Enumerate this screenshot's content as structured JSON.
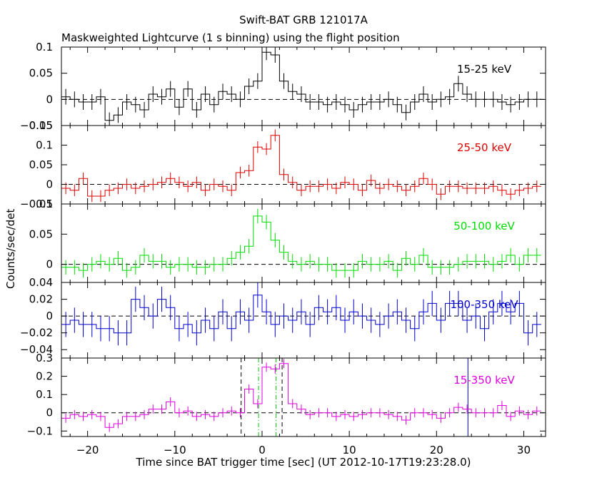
{
  "chart_data": {
    "type": "line",
    "title": "Swift-BAT GRB 121017A",
    "subtitle": "Maskweighted Lightcurve (1 s binning) using the flight position",
    "xlabel": "Time since BAT trigger time [sec] (UT 2012-10-17T19:23:28.0)",
    "ylabel": "Counts/sec/det",
    "xlim": [
      -23,
      32.5
    ],
    "xticks": [
      -20,
      -10,
      0,
      10,
      20,
      30
    ],
    "x": [
      -22.5,
      -21.5,
      -20.5,
      -19.5,
      -18.5,
      -17.5,
      -16.5,
      -15.5,
      -14.5,
      -13.5,
      -12.5,
      -11.5,
      -10.5,
      -9.5,
      -8.5,
      -7.5,
      -6.5,
      -5.5,
      -4.5,
      -3.5,
      -2.5,
      -1.5,
      -0.5,
      0.5,
      1.5,
      2.5,
      3.5,
      4.5,
      5.5,
      6.5,
      7.5,
      8.5,
      9.5,
      10.5,
      11.5,
      12.5,
      13.5,
      14.5,
      15.5,
      16.5,
      17.5,
      18.5,
      19.5,
      20.5,
      21.5,
      22.5,
      23.5,
      24.5,
      25.5,
      26.5,
      27.5,
      28.5,
      29.5,
      30.5,
      31.5
    ],
    "panels": [
      {
        "name": "15-25 keV",
        "color": "#000000",
        "ylim": [
          -0.05,
          0.1
        ],
        "yticks": [
          -0.05,
          0,
          0.05,
          0.1
        ],
        "yticklabels": [
          "−0.05",
          "0",
          "0.05",
          "0.1"
        ],
        "values": [
          0.005,
          0.0,
          -0.005,
          -0.005,
          0.005,
          -0.04,
          -0.03,
          -0.005,
          -0.01,
          -0.02,
          0.01,
          0.005,
          0.02,
          -0.015,
          0.02,
          -0.02,
          0.01,
          -0.01,
          0.015,
          0.01,
          0.0,
          0.025,
          0.035,
          0.09,
          0.085,
          0.035,
          0.015,
          0.01,
          -0.005,
          -0.005,
          -0.01,
          -0.005,
          -0.01,
          -0.02,
          -0.01,
          -0.005,
          -0.005,
          0.0,
          -0.01,
          -0.025,
          -0.005,
          0.01,
          -0.005,
          0.0,
          0.005,
          0.03,
          0.01,
          0.0,
          0.0,
          0.0,
          -0.005,
          -0.01,
          -0.005,
          0.0,
          0.0
        ],
        "error": 0.015
      },
      {
        "name": "25-50 keV",
        "color": "#dd0000",
        "ylim": [
          -0.05,
          0.15
        ],
        "yticks": [
          -0.05,
          0,
          0.05,
          0.1,
          0.15
        ],
        "yticklabels": [
          "−0.05",
          "0",
          "0.05",
          "0.1",
          "0.15"
        ],
        "values": [
          -0.01,
          -0.015,
          0.015,
          -0.03,
          -0.03,
          -0.015,
          -0.01,
          0.0,
          -0.01,
          -0.005,
          0.0,
          0.005,
          0.015,
          0.005,
          -0.005,
          0.005,
          -0.015,
          0.0,
          -0.005,
          -0.015,
          0.03,
          0.035,
          0.095,
          0.09,
          0.125,
          0.025,
          0.005,
          -0.015,
          -0.005,
          -0.005,
          0.0,
          -0.01,
          0.005,
          0.0,
          -0.015,
          0.01,
          -0.01,
          0.0,
          -0.005,
          -0.015,
          -0.005,
          0.015,
          0.0,
          -0.025,
          -0.005,
          -0.005,
          -0.01,
          -0.01,
          -0.01,
          -0.005,
          -0.015,
          -0.025,
          -0.015,
          -0.01,
          -0.005
        ],
        "error": 0.015
      },
      {
        "name": "50-100 keV",
        "color": "#00dd00",
        "ylim": [
          -0.03,
          0.1
        ],
        "yticks": [
          0,
          0.05,
          0.1
        ],
        "yticklabels": [
          "0",
          "0.05",
          "0.1"
        ],
        "values": [
          -0.005,
          -0.005,
          -0.01,
          0.0,
          0.005,
          0.0,
          0.01,
          -0.01,
          -0.005,
          0.015,
          0.005,
          0.005,
          -0.005,
          0.0,
          0.0,
          -0.005,
          -0.005,
          0.0,
          0.0,
          0.01,
          0.02,
          0.03,
          0.08,
          0.07,
          0.04,
          0.02,
          0.005,
          0.0,
          0.005,
          0.0,
          0.0,
          -0.01,
          -0.01,
          -0.01,
          0.005,
          0.0,
          0.0,
          0.005,
          -0.01,
          0.01,
          0.0,
          0.015,
          -0.005,
          -0.005,
          -0.005,
          0.0,
          0.005,
          0.005,
          0.005,
          0.0,
          0.005,
          0.015,
          0.0,
          0.015,
          0.015
        ],
        "error": 0.012
      },
      {
        "name": "100-350 keV",
        "color": "#0000cc",
        "ylim": [
          -0.05,
          0.04
        ],
        "yticks": [
          -0.04,
          -0.02,
          0,
          0.02,
          0.04
        ],
        "yticklabels": [
          "−0.04",
          "−0.02",
          "0",
          "0.02",
          "0.04"
        ],
        "values": [
          -0.01,
          -0.005,
          -0.01,
          -0.01,
          -0.015,
          -0.015,
          -0.02,
          -0.02,
          0.02,
          0.01,
          0.0,
          0.02,
          0.01,
          -0.015,
          -0.01,
          -0.02,
          -0.005,
          -0.015,
          0.005,
          -0.015,
          0.005,
          -0.005,
          0.025,
          0.005,
          -0.01,
          0.0,
          -0.005,
          0.005,
          -0.01,
          0.01,
          0.005,
          0.01,
          -0.005,
          0.005,
          0.0,
          -0.005,
          -0.01,
          0.0,
          0.005,
          -0.005,
          -0.015,
          0.005,
          0.015,
          -0.005,
          0.015,
          0.015,
          -0.005,
          0.0,
          -0.015,
          0.005,
          0.015,
          0.005,
          0.015,
          -0.02,
          -0.01
        ],
        "error": 0.015
      },
      {
        "name": "15-350 keV",
        "color": "#dd00dd",
        "ylim": [
          -0.13,
          0.3
        ],
        "yticks": [
          -0.1,
          0,
          0.1,
          0.2,
          0.3
        ],
        "yticklabels": [
          "−0.1",
          "0",
          "0.1",
          "0.2",
          "0.3"
        ],
        "values": [
          -0.03,
          -0.01,
          -0.02,
          -0.01,
          -0.02,
          -0.08,
          -0.06,
          -0.02,
          -0.02,
          -0.01,
          0.02,
          0.02,
          0.06,
          0.0,
          0.01,
          -0.02,
          -0.01,
          -0.02,
          0.0,
          0.01,
          0.0,
          0.13,
          0.05,
          0.25,
          0.24,
          0.27,
          0.05,
          0.02,
          -0.01,
          0.0,
          0.0,
          -0.02,
          -0.01,
          -0.02,
          -0.01,
          0.0,
          0.0,
          -0.01,
          -0.02,
          -0.04,
          0.0,
          0.0,
          -0.01,
          -0.03,
          0.0,
          0.03,
          0.02,
          0.0,
          0.0,
          0.0,
          0.04,
          -0.02,
          0.01,
          -0.01,
          0.01
        ],
        "error": 0.025,
        "markers": {
          "black_dashed": [
            -2.4,
            2.3
          ],
          "green_dashdot": [
            -0.4,
            1.6
          ],
          "navy_solid": [
            23.6
          ]
        }
      }
    ]
  }
}
